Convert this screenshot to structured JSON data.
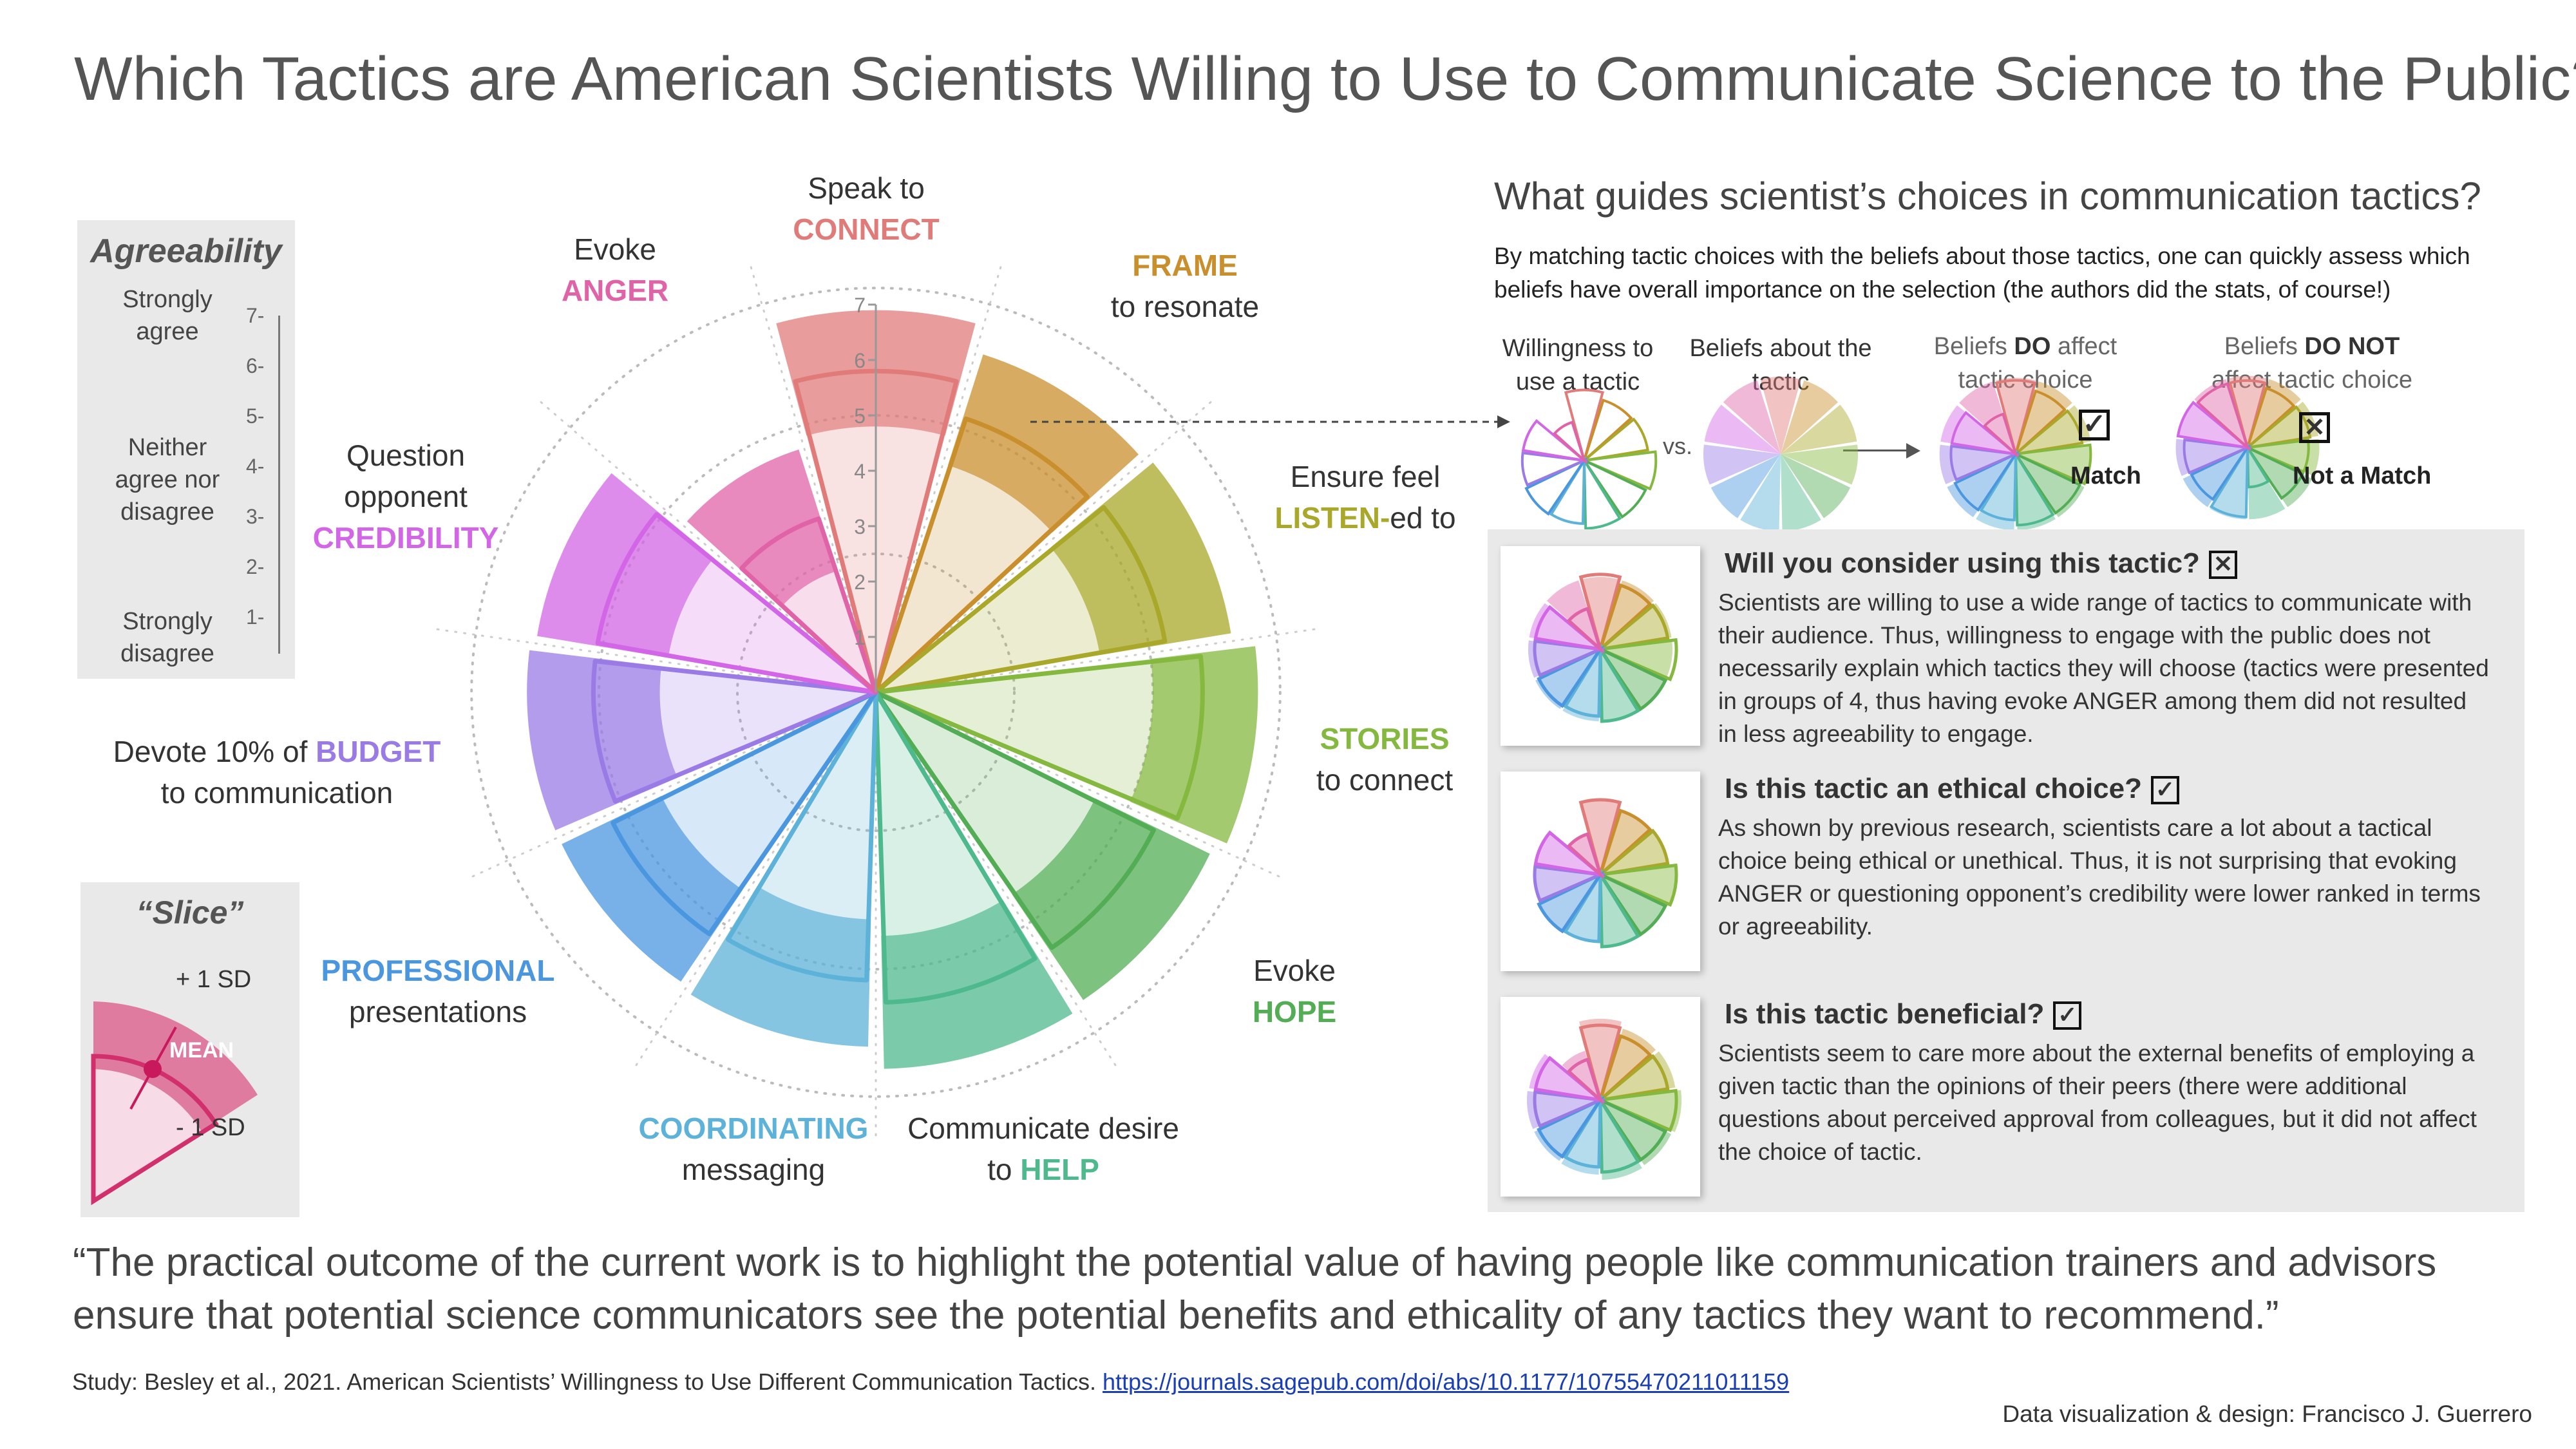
{
  "title": "Which Tactics are American Scientists Willing to Use to Communicate Science to the Public?",
  "agreeability": {
    "heading": "Agreeability",
    "ticks": [
      "7",
      "6",
      "5",
      "4",
      "3",
      "2",
      "1"
    ],
    "strongly_agree": "Strongly agree",
    "neither": "Neither agree nor disagree",
    "strongly_disagree": "Strongly disagree"
  },
  "slice_legend": {
    "heading": "“Slice”",
    "plus_sd": "+ 1 SD",
    "mean": "MEAN",
    "minus_sd": "- 1 SD"
  },
  "chart_data": {
    "type": "polar-bar",
    "r_axis_ticks": [
      1,
      2,
      3,
      4,
      5,
      6,
      7
    ],
    "r_lim": [
      0,
      7
    ],
    "categories": [
      {
        "pre": "Speak to",
        "key": "CONNECT",
        "post": "",
        "color": "#e07b7a"
      },
      {
        "pre": "",
        "key": "FRAME",
        "post": "to resonate",
        "color": "#c98f2c"
      },
      {
        "pre": "Ensure feel",
        "key": "LISTEN-",
        "post": "ed to",
        "color": "#a9a82a"
      },
      {
        "pre": "",
        "key": "STORIES",
        "post": "to connect",
        "color": "#84b83e"
      },
      {
        "pre": "Evoke",
        "key": "HOPE",
        "post": "",
        "color": "#52ad54"
      },
      {
        "pre": "Communicate desire to",
        "key": "HELP",
        "post": "",
        "color": "#4fb98e"
      },
      {
        "pre": "",
        "key": "COORDINATING",
        "post": "messaging",
        "color": "#5cb2d8"
      },
      {
        "pre": "",
        "key": "PROFESSIONAL",
        "post": "presentations",
        "color": "#4a97e0"
      },
      {
        "pre": "Devote 10% of",
        "key": "BUDGET",
        "post": "to communication",
        "color": "#9a7be6"
      },
      {
        "pre": "Question opponent",
        "key": "CREDIBILITY",
        "post": "",
        "color": "#d266e6"
      },
      {
        "pre": "Evoke",
        "key": "ANGER",
        "post": "",
        "color": "#e063a8"
      }
    ],
    "series": [
      {
        "name": "Willingness to use a tactic",
        "mean": [
          5.8,
          5.2,
          5.3,
          5.9,
          5.6,
          5.6,
          5.2,
          5.3,
          5.1,
          5.1,
          3.3
        ],
        "minus_sd": [
          4.8,
          4.3,
          4.1,
          5.0,
          4.4,
          4.4,
          4.1,
          4.3,
          3.9,
          3.8,
          2.3
        ],
        "plus_sd": [
          6.9,
          6.4,
          6.5,
          6.9,
          6.7,
          6.8,
          6.4,
          6.3,
          6.3,
          6.2,
          4.6
        ]
      }
    ]
  },
  "explainer": {
    "heading": "What guides scientist’s choices in communication tactics?",
    "desc": "By matching tactic choices with the beliefs about those tactics, one can quickly assess which beliefs have overall importance on the selection (the authors did the stats, of course!)",
    "willingness": "Willingness to use a tactic",
    "beliefs": "Beliefs about the tactic",
    "vs": "vs.",
    "do_pre": "Beliefs ",
    "do_key": "DO",
    "do_post": " affect tactic choice",
    "donot_pre": "Beliefs ",
    "donot_key": "DO NOT",
    "donot_post": " affect tactic choice",
    "match": "Match",
    "not_match": "Not a Match"
  },
  "cards": [
    {
      "title": "Will you consider using this tactic?",
      "mark": "x",
      "text": "Scientists are willing to use a wide range of tactics to communicate with their audience. Thus, willingness to engage with the public does not necessarily explain which tactics they will choose (tactics were presented in groups of 4, thus having  evoke ANGER among them did not resulted in less agreeability to engage."
    },
    {
      "title": "Is this tactic an ethical choice?",
      "mark": "check",
      "text": "As shown by previous research, scientists care a lot about  a tactical choice being ethical or unethical. Thus, it is not surprising that evoking ANGER or questioning opponent’s credibility were lower ranked in terms or agreeability."
    },
    {
      "title": "Is this tactic beneficial?",
      "mark": "check",
      "text": "Scientists seem to care more about the external benefits of employing a given tactic than the opinions of their peers (there were additional questions about perceived approval from colleagues, but it did not affect the choice of tactic."
    }
  ],
  "quote": "“The practical outcome of the current work is to highlight the potential value of having people like communication trainers and advisors ensure that potential science communicators see the potential benefits and ethicality of any tactics they want to recommend.”",
  "source_text": "Study: Besley et al., 2021. American Scientists’ Willingness to Use Different Communication Tactics. ",
  "source_link": "https://journals.sagepub.com/doi/abs/10.1177/10755470211011159",
  "credit": "Data visualization & design: Francisco J. Guerrero"
}
